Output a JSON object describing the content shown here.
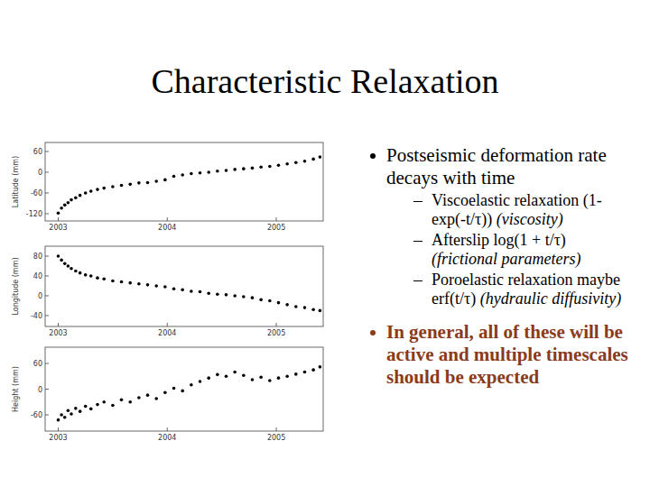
{
  "slide": {
    "title": "Characteristic Relaxation",
    "bullets": [
      {
        "text": "Postseismic deformation rate decays with time",
        "sub": [
          {
            "text": "Viscoelastic relaxation (1-exp(-t/τ))",
            "note": "(viscosity)"
          },
          {
            "text": "Afterslip log(1 + t/τ)",
            "note": "(frictional parameters)"
          },
          {
            "text": "Poroelastic relaxation maybe erf(t/τ)",
            "note": "(hydraulic diffusivity)"
          }
        ]
      },
      {
        "text": "In general, all of these will be active and multiple timescales should be expected",
        "emphasis": true
      }
    ]
  },
  "chart_data": [
    {
      "type": "scatter",
      "y_label": "Latitude (mm)",
      "color": "#000000",
      "marker": "dot",
      "x": [
        2003.0,
        2003.03,
        2003.06,
        2003.09,
        2003.12,
        2003.16,
        2003.2,
        2003.25,
        2003.3,
        2003.36,
        2003.42,
        2003.5,
        2003.58,
        2003.66,
        2003.74,
        2003.82,
        2003.9,
        2003.98,
        2004.06,
        2004.14,
        2004.22,
        2004.3,
        2004.38,
        2004.46,
        2004.54,
        2004.62,
        2004.7,
        2004.78,
        2004.86,
        2004.94,
        2005.02,
        2005.1,
        2005.18,
        2005.26,
        2005.34,
        2005.4
      ],
      "values": [
        -118,
        -104,
        -95,
        -88,
        -80,
        -74,
        -67,
        -60,
        -55,
        -50,
        -46,
        -42,
        -38,
        -35,
        -31,
        -30,
        -26,
        -22,
        -12,
        -8,
        -4,
        -2,
        0,
        3,
        5,
        8,
        10,
        12,
        15,
        17,
        20,
        24,
        28,
        32,
        38,
        44
      ],
      "xlim": [
        2002.88,
        2005.43
      ],
      "xticks": [
        2003,
        2004,
        2005
      ],
      "ylim": [
        -141,
        86
      ],
      "yticks": [
        -120,
        -60,
        0,
        60
      ]
    },
    {
      "type": "scatter",
      "y_label": "Longitude (mm)",
      "color": "#000000",
      "marker": "dot",
      "x": [
        2003.0,
        2003.03,
        2003.06,
        2003.09,
        2003.12,
        2003.16,
        2003.2,
        2003.25,
        2003.3,
        2003.36,
        2003.42,
        2003.5,
        2003.58,
        2003.66,
        2003.74,
        2003.82,
        2003.9,
        2003.98,
        2004.06,
        2004.14,
        2004.22,
        2004.3,
        2004.38,
        2004.46,
        2004.54,
        2004.62,
        2004.7,
        2004.78,
        2004.86,
        2004.94,
        2005.02,
        2005.1,
        2005.18,
        2005.26,
        2005.34,
        2005.4
      ],
      "values": [
        80,
        72,
        65,
        60,
        55,
        50,
        46,
        42,
        40,
        36,
        34,
        30,
        28,
        26,
        24,
        22,
        20,
        18,
        14,
        12,
        9,
        8,
        5,
        3,
        2,
        0,
        -2,
        -4,
        -8,
        -10,
        -14,
        -18,
        -22,
        -24,
        -28,
        -30
      ],
      "xlim": [
        2002.88,
        2005.43
      ],
      "xticks": [
        2003,
        2004,
        2005
      ],
      "ylim": [
        -62,
        100
      ],
      "yticks": [
        -40,
        0,
        40,
        80
      ]
    },
    {
      "type": "scatter",
      "y_label": "Height (mm)",
      "color": "#000000",
      "marker": "dot",
      "x": [
        2003.0,
        2003.03,
        2003.06,
        2003.09,
        2003.12,
        2003.16,
        2003.2,
        2003.25,
        2003.3,
        2003.36,
        2003.42,
        2003.5,
        2003.58,
        2003.66,
        2003.74,
        2003.82,
        2003.9,
        2003.98,
        2004.06,
        2004.14,
        2004.22,
        2004.3,
        2004.38,
        2004.46,
        2004.54,
        2004.62,
        2004.7,
        2004.78,
        2004.86,
        2004.94,
        2005.02,
        2005.1,
        2005.18,
        2005.26,
        2005.34,
        2005.4
      ],
      "values": [
        -72,
        -60,
        -66,
        -50,
        -58,
        -45,
        -52,
        -40,
        -46,
        -36,
        -30,
        -38,
        -25,
        -30,
        -20,
        -14,
        -22,
        -8,
        2,
        -4,
        10,
        18,
        26,
        34,
        30,
        40,
        32,
        22,
        28,
        20,
        26,
        30,
        35,
        40,
        45,
        52
      ],
      "xlim": [
        2002.88,
        2005.43
      ],
      "xticks": [
        2003,
        2004,
        2005
      ],
      "ylim": [
        -98,
        98
      ],
      "yticks": [
        -60,
        0,
        60
      ]
    }
  ]
}
